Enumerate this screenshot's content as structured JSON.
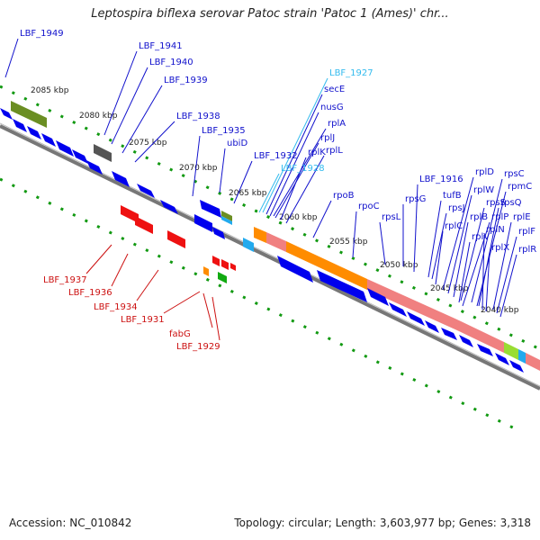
{
  "title": "Leptospira biflexa serovar Patoc strain 'Patoc 1 (Ames)' chr...",
  "footer": {
    "accession": "Accession: NC_010842",
    "summary": "Topology: circular; Length: 3,603,977 bp; Genes: 3,318"
  },
  "colors": {
    "blue_label": "#1111cc",
    "cyan_label": "#33bbee",
    "red_label": "#cc1111",
    "backbone": "#888888",
    "gene_blue": "#0000ee",
    "gene_red": "#ee1111",
    "gene_green": "#11aa11",
    "olive": "#6b8e23",
    "orange": "#ff8c00",
    "salmon": "#f08080",
    "lime": "#99dd33",
    "cyan": "#22aaee",
    "gray": "#555555"
  },
  "kbp_ticks": [
    "2085 kbp",
    "2080 kbp",
    "2075 kbp",
    "2070 kbp",
    "2065 kbp",
    "2060 kbp",
    "2055 kbp",
    "2050 kbp",
    "2045 kbp",
    "2040 kbp"
  ],
  "top_labels": [
    "LBF_1949",
    "LBF_1941",
    "LBF_1940",
    "LBF_1939",
    "LBF_1938",
    "LBF_1935",
    "ubiD",
    "LBF_1932",
    "LBF_1928",
    "LBF_1927",
    "secE",
    "nusG",
    "rplA",
    "rplJ",
    "rplK",
    "rplL",
    "rpoB",
    "rpoC",
    "rpsL",
    "rpsG",
    "LBF_1916",
    "tufB",
    "rpsJ",
    "rplC",
    "rplD",
    "rplW",
    "rplB",
    "rpsS",
    "rplV",
    "rplP",
    "rpsC",
    "rpmC",
    "rpsQ",
    "rplN",
    "rplX",
    "rplE",
    "rplF",
    "rplR"
  ],
  "bottom_labels": [
    "LBF_1937",
    "LBF_1936",
    "LBF_1934",
    "LBF_1931",
    "fabG",
    "LBF_1929"
  ]
}
